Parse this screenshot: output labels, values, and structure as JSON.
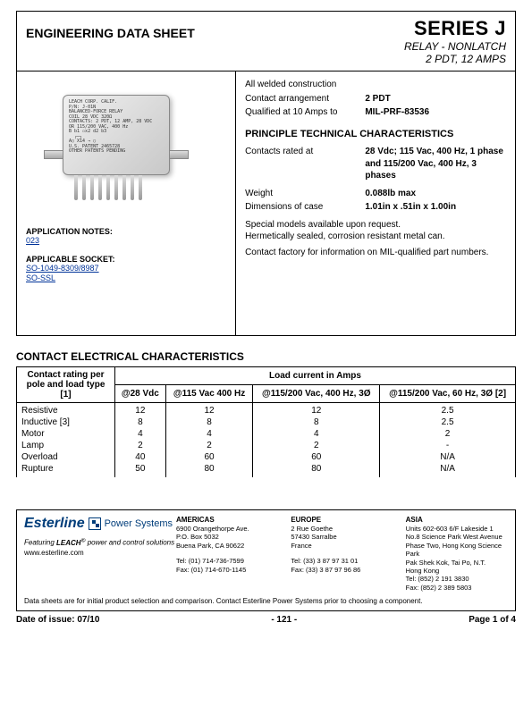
{
  "header": {
    "left_title": "ENGINEERING DATA SHEET",
    "series": "SERIES J",
    "subtitle1": "RELAY - NONLATCH",
    "subtitle2": "2 PDT, 12 AMPS"
  },
  "product_image_label": "LEACH CORP. CALIF.\nP/N: J-01N\nBALANCED-FORCE RELAY\nCOIL 28 VDC 320Ω\nCONTACTS: 2 PDT, 12 AMP, 28 VDC\nOR 115/200 VAC, 400 Hz\nB b1 ▫x2 d2 b3\n  ┌─┐\nA○ X14 → ○\nU.S. PATENT 2465728\nOTHER PATENTS PENDING",
  "notes": {
    "app_notes_label": "APPLICATION NOTES:",
    "app_notes_link": "023",
    "socket_label": "APPLICABLE SOCKET:",
    "socket_link1": "SO-1049-8309/8987",
    "socket_link2": "SO-SSL"
  },
  "specs": {
    "line1": "All welded construction",
    "contact_arr_k": "Contact arrangement",
    "contact_arr_v": "2 PDT",
    "qualified_k": "Qualified at 10 Amps to",
    "qualified_v": "MIL-PRF-83536",
    "section_head": "PRINCIPLE TECHNICAL CHARACTERISTICS",
    "contacts_k": "Contacts rated at",
    "contacts_v": "28 Vdc; 115 Vac, 400 Hz, 1 phase and 115/200 Vac, 400 Hz, 3 phases",
    "weight_k": "Weight",
    "weight_v": "0.088lb max",
    "dim_k": "Dimensions of case",
    "dim_v": "1.01in x .51in x 1.00in",
    "note1": "Special models available upon request.",
    "note2": "Hermetically sealed, corrosion resistant metal can.",
    "note3": "Contact factory for information on MIL-qualified part numbers."
  },
  "elec": {
    "title": "CONTACT ELECTRICAL CHARACTERISTICS",
    "row_header": "Contact rating per pole and load type [1]",
    "super_header": "Load current in Amps",
    "cols": [
      "@28 Vdc",
      "@115 Vac 400 Hz",
      "@115/200 Vac, 400 Hz, 3Ø",
      "@115/200 Vac, 60 Hz, 3Ø [2]"
    ],
    "rows": [
      {
        "label": "Resistive",
        "v": [
          "12",
          "12",
          "12",
          "2.5"
        ]
      },
      {
        "label": "Inductive [3]",
        "v": [
          "8",
          "8",
          "8",
          "2.5"
        ]
      },
      {
        "label": "Motor",
        "v": [
          "4",
          "4",
          "4",
          "2"
        ]
      },
      {
        "label": "Lamp",
        "v": [
          "2",
          "2",
          "2",
          "-"
        ]
      },
      {
        "label": "Overload",
        "v": [
          "40",
          "60",
          "60",
          "N/A"
        ]
      },
      {
        "label": "Rupture",
        "v": [
          "50",
          "80",
          "80",
          "N/A"
        ]
      }
    ]
  },
  "footer": {
    "logo_main": "Esterline",
    "logo_sub": "Power Systems",
    "tagline_pre": "Featuring ",
    "tagline_brand": "LEACH",
    "tagline_post": " power and control solutions",
    "website": "www.esterline.com",
    "regions": {
      "americas": {
        "h": "AMERICAS",
        "l1": "6900 Orangethorpe Ave.",
        "l2": "P.O. Box 5032",
        "l3": "Buena Park, CA 90622",
        "tel": "Tel: (01) 714-736-7599",
        "fax": "Fax: (01) 714-670-1145"
      },
      "europe": {
        "h": "EUROPE",
        "l1": "2 Rue Goethe",
        "l2": "57430 Sarralbe",
        "l3": "France",
        "tel": "Tel: (33) 3 87 97 31 01",
        "fax": "Fax: (33) 3 87 97 96 86"
      },
      "asia": {
        "h": "ASIA",
        "l1": "Units 602-603 6/F Lakeside 1",
        "l2": "No.8 Science Park West Avenue",
        "l3": "Phase Two, Hong Kong Science Park",
        "l4": "Pak Shek Kok, Tai Po, N.T.",
        "l5": "Hong Kong",
        "tel": "Tel: (852) 2 191 3830",
        "fax": "Fax: (852) 2 389 5803"
      }
    },
    "disclaimer": "Data sheets are for initial product selection and comparison. Contact Esterline Power Systems prior to choosing a component.",
    "date": "Date of issue: 07/10",
    "pagenum": "- 121 -",
    "pageof": "Page 1 of 4"
  }
}
